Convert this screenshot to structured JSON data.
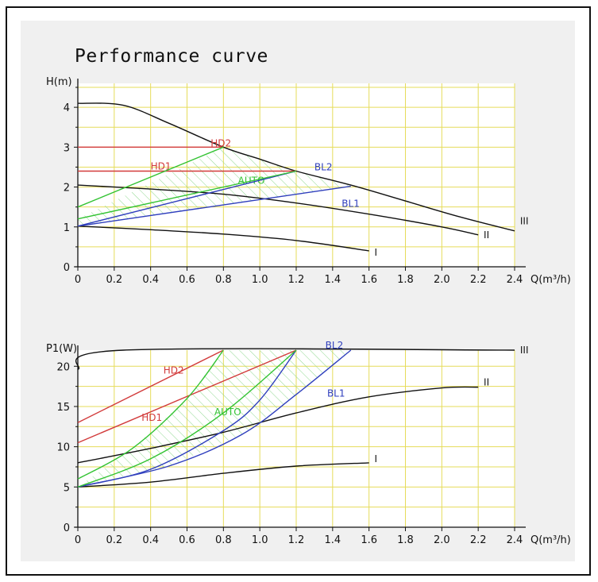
{
  "title": "Performance curve",
  "colors": {
    "red": "#d23b3b",
    "green": "#33c333",
    "blue": "#2f3fbd",
    "black": "#111111",
    "grid": "#e6dc5a",
    "hatch": "#8fd98f",
    "plot_bg": "#ffffff"
  },
  "chart_data": [
    {
      "type": "line",
      "ylabel": "H(m)",
      "xlabel": "Q(m³/h)",
      "xlim": [
        0,
        2.4
      ],
      "ylim": [
        0,
        4.6
      ],
      "xticks": [
        "0",
        "0.2",
        "0.4",
        "0.6",
        "0.8",
        "1.0",
        "1.2",
        "1.4",
        "1.6",
        "1.8",
        "2.0",
        "2.2",
        "2.4"
      ],
      "yticks": [
        "0",
        "1",
        "2",
        "3",
        "4"
      ],
      "grid": true,
      "series": [
        {
          "name": "III",
          "color": "#111111",
          "label_at": [
            2.43,
            1.15
          ],
          "points": [
            [
              0,
              4.1
            ],
            [
              0.25,
              4.05
            ],
            [
              0.5,
              3.6
            ],
            [
              0.8,
              3.0
            ],
            [
              1.0,
              2.7
            ],
            [
              1.2,
              2.4
            ],
            [
              1.5,
              2.05
            ],
            [
              1.8,
              1.65
            ],
            [
              2.1,
              1.25
            ],
            [
              2.4,
              0.9
            ]
          ]
        },
        {
          "name": "II",
          "color": "#111111",
          "label_at": [
            2.23,
            0.8
          ],
          "points": [
            [
              0,
              2.05
            ],
            [
              0.4,
              1.95
            ],
            [
              0.8,
              1.82
            ],
            [
              1.2,
              1.6
            ],
            [
              1.6,
              1.32
            ],
            [
              2.0,
              1.0
            ],
            [
              2.2,
              0.8
            ]
          ]
        },
        {
          "name": "I",
          "color": "#111111",
          "label_at": [
            1.63,
            0.36
          ],
          "points": [
            [
              0,
              1.02
            ],
            [
              0.4,
              0.93
            ],
            [
              0.8,
              0.82
            ],
            [
              1.2,
              0.66
            ],
            [
              1.6,
              0.4
            ]
          ]
        },
        {
          "name": "HD2",
          "color": "#d23b3b",
          "label_at": [
            0.73,
            3.1
          ],
          "points": [
            [
              0,
              3.0
            ],
            [
              0.8,
              3.0
            ]
          ]
        },
        {
          "name": "HD1",
          "color": "#d23b3b",
          "label_at": [
            0.4,
            2.52
          ],
          "points": [
            [
              0,
              2.4
            ],
            [
              1.2,
              2.4
            ]
          ]
        },
        {
          "name": "AUTO",
          "color": "#33c333",
          "label_at": [
            0.88,
            2.16
          ],
          "points": [
            [
              0,
              1.5
            ],
            [
              0.8,
              3.0
            ]
          ]
        },
        {
          "name": "BL2",
          "color": "#2f3fbd",
          "label_at": [
            1.3,
            2.5
          ],
          "points": [
            [
              0,
              1.02
            ],
            [
              1.2,
              2.4
            ]
          ]
        },
        {
          "name": "BL1",
          "color": "#2f3fbd",
          "label_at": [
            1.45,
            1.58
          ],
          "points": [
            [
              0,
              1.02
            ],
            [
              1.5,
              2.02
            ]
          ]
        },
        {
          "name": "",
          "color": "#33c333",
          "points": [
            [
              0,
              1.2
            ],
            [
              1.2,
              2.4
            ]
          ]
        }
      ],
      "hatched_region": [
        [
          0,
          1.2
        ],
        [
          0.8,
          3.0
        ],
        [
          1.2,
          2.4
        ],
        [
          1.5,
          2.02
        ],
        [
          0,
          1.02
        ]
      ]
    },
    {
      "type": "line",
      "ylabel": "P1(W)",
      "xlabel": "Q(m³/h)",
      "xlim": [
        0,
        2.4
      ],
      "ylim": [
        0,
        22
      ],
      "xticks": [
        "0",
        "0.2",
        "0.4",
        "0.6",
        "0.8",
        "1.0",
        "1.2",
        "1.4",
        "1.6",
        "1.8",
        "2.0",
        "2.2",
        "2.4"
      ],
      "yticks": [
        "0",
        "5",
        "10",
        "15",
        "20"
      ],
      "grid": true,
      "series": [
        {
          "name": "III",
          "color": "#111111",
          "label_at": [
            2.43,
            22
          ],
          "points": [
            [
              0,
              19.6
            ],
            [
              0.25,
              22
            ],
            [
              2.4,
              22
            ]
          ]
        },
        {
          "name": "II",
          "color": "#111111",
          "label_at": [
            2.23,
            18.0
          ],
          "points": [
            [
              0,
              8.0
            ],
            [
              0.4,
              9.8
            ],
            [
              0.8,
              11.8
            ],
            [
              1.2,
              14.2
            ],
            [
              1.6,
              16.2
            ],
            [
              2.0,
              17.3
            ],
            [
              2.2,
              17.4
            ]
          ]
        },
        {
          "name": "I",
          "color": "#111111",
          "label_at": [
            1.63,
            8.5
          ],
          "points": [
            [
              0,
              5.0
            ],
            [
              0.4,
              5.6
            ],
            [
              0.8,
              6.7
            ],
            [
              1.2,
              7.6
            ],
            [
              1.6,
              8.0
            ]
          ]
        },
        {
          "name": "HD2",
          "color": "#d23b3b",
          "label_at": [
            0.47,
            19.5
          ],
          "points": [
            [
              0,
              13.0
            ],
            [
              0.8,
              22
            ]
          ]
        },
        {
          "name": "HD1",
          "color": "#d23b3b",
          "label_at": [
            0.35,
            13.6
          ],
          "points": [
            [
              0,
              10.5
            ],
            [
              1.2,
              22
            ]
          ]
        },
        {
          "name": "AUTO",
          "color": "#33c333",
          "label_at": [
            0.75,
            14.3
          ],
          "points": [
            [
              0,
              6.0
            ],
            [
              0.3,
              9.8
            ],
            [
              0.6,
              16.0
            ],
            [
              0.8,
              22
            ]
          ]
        },
        {
          "name": "BL2",
          "color": "#2f3fbd",
          "label_at": [
            1.36,
            22.6
          ],
          "points": [
            [
              0,
              5.0
            ],
            [
              0.4,
              7.2
            ],
            [
              0.8,
              12.0
            ],
            [
              1.0,
              15.8
            ],
            [
              1.2,
              22
            ]
          ]
        },
        {
          "name": "BL1",
          "color": "#2f3fbd",
          "label_at": [
            1.37,
            16.6
          ],
          "points": [
            [
              0,
              5.0
            ],
            [
              0.5,
              7.6
            ],
            [
              0.9,
              11.5
            ],
            [
              1.2,
              16.5
            ],
            [
              1.5,
              22
            ]
          ]
        },
        {
          "name": "",
          "color": "#33c333",
          "points": [
            [
              0,
              5.0
            ],
            [
              0.4,
              8.5
            ],
            [
              0.8,
              14.2
            ],
            [
              1.2,
              22
            ]
          ]
        }
      ],
      "hatched_region": [
        [
          0,
          5.0
        ],
        [
          0.3,
          9.8
        ],
        [
          0.6,
          16.0
        ],
        [
          0.8,
          22
        ],
        [
          1.5,
          22
        ],
        [
          1.2,
          16.5
        ],
        [
          0.9,
          11.5
        ],
        [
          0.5,
          7.6
        ]
      ]
    }
  ]
}
